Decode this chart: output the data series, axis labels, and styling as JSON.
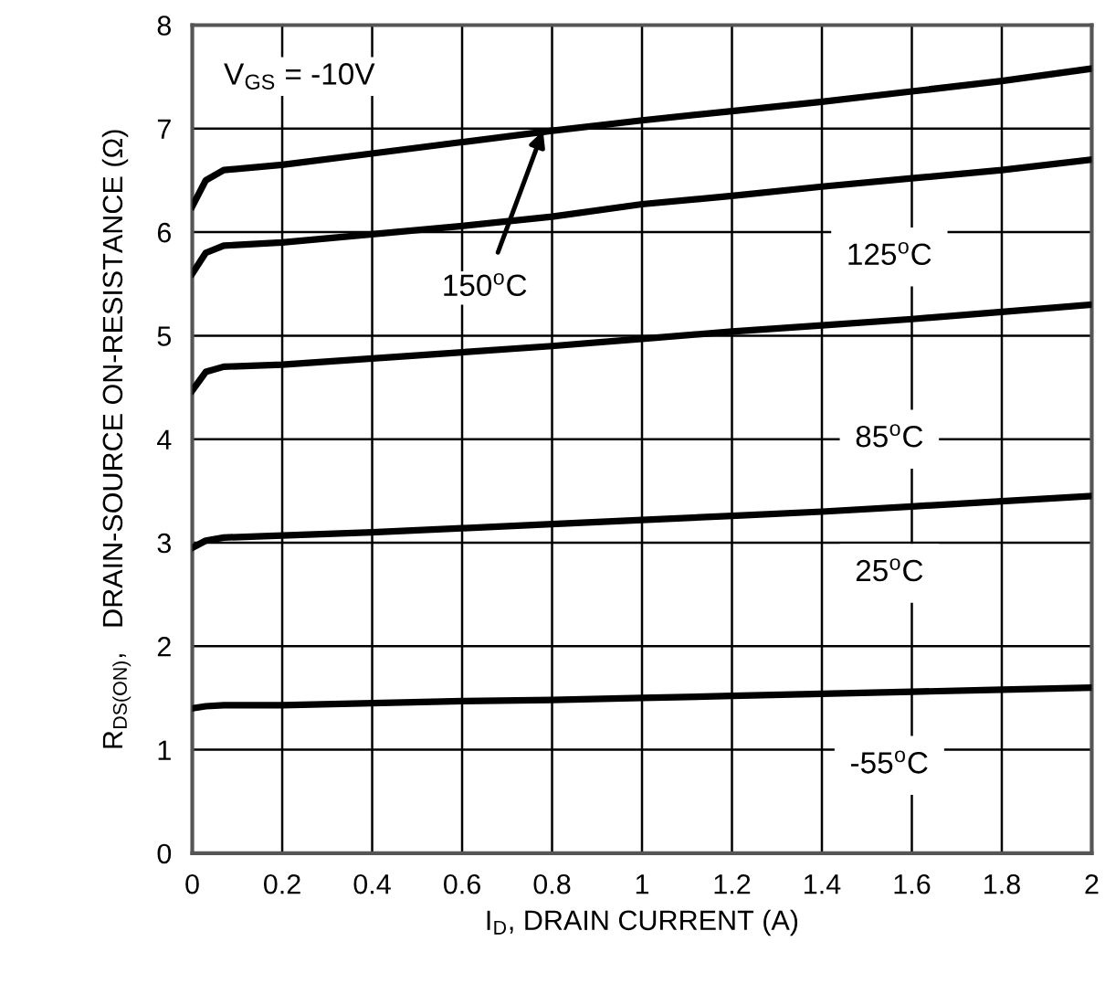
{
  "chart_data": {
    "type": "line",
    "xlabel": "I$_{D}$, DRAIN CURRENT (A)",
    "ylabel": "R$_{DS(ON)}$,   DRAIN-SOURCE ON-RESISTANCE (Ω)",
    "x": [
      0,
      0.03,
      0.07,
      0.2,
      0.4,
      0.6,
      0.8,
      1.0,
      1.2,
      1.4,
      1.6,
      1.8,
      2.0
    ],
    "series": [
      {
        "color": "#000000",
        "values": [
          6.25,
          6.5,
          6.6,
          6.65,
          6.76,
          6.87,
          6.98,
          7.08,
          7.17,
          7.26,
          7.36,
          7.46,
          7.58
        ]
      },
      {
        "color": "#000000",
        "values": [
          5.6,
          5.8,
          5.87,
          5.9,
          5.98,
          6.06,
          6.15,
          6.27,
          6.35,
          6.44,
          6.52,
          6.6,
          6.7
        ]
      },
      {
        "color": "#000000",
        "values": [
          4.47,
          4.65,
          4.7,
          4.72,
          4.78,
          4.84,
          4.9,
          4.97,
          5.04,
          5.1,
          5.16,
          5.23,
          5.3
        ]
      },
      {
        "color": "#000000",
        "values": [
          2.95,
          3.02,
          3.05,
          3.07,
          3.1,
          3.14,
          3.18,
          3.22,
          3.26,
          3.3,
          3.35,
          3.4,
          3.45
        ]
      },
      {
        "color": "#000000",
        "values": [
          1.4,
          1.42,
          1.43,
          1.43,
          1.45,
          1.47,
          1.48,
          1.5,
          1.52,
          1.54,
          1.56,
          1.58,
          1.6
        ]
      }
    ],
    "xlim": [
      0,
      2
    ],
    "ylim": [
      0,
      8
    ],
    "xticks": [
      0,
      0.2,
      0.4,
      0.6,
      0.8,
      1,
      1.2,
      1.4,
      1.6,
      1.8,
      2
    ],
    "yticks": [
      0,
      1,
      2,
      3,
      4,
      5,
      6,
      7,
      8
    ],
    "grid": true,
    "legend": false,
    "marker": "none",
    "line_style": "solid",
    "annotations": [
      "V$_{GS}$ = -10V",
      {
        "text": "150$^{o}$C",
        "x": 0.78,
        "y": 6.98
      },
      "125$^{o}$C",
      "85$^{o}$C",
      "25$^{o}$C",
      "-55$^{o}$C"
    ]
  }
}
